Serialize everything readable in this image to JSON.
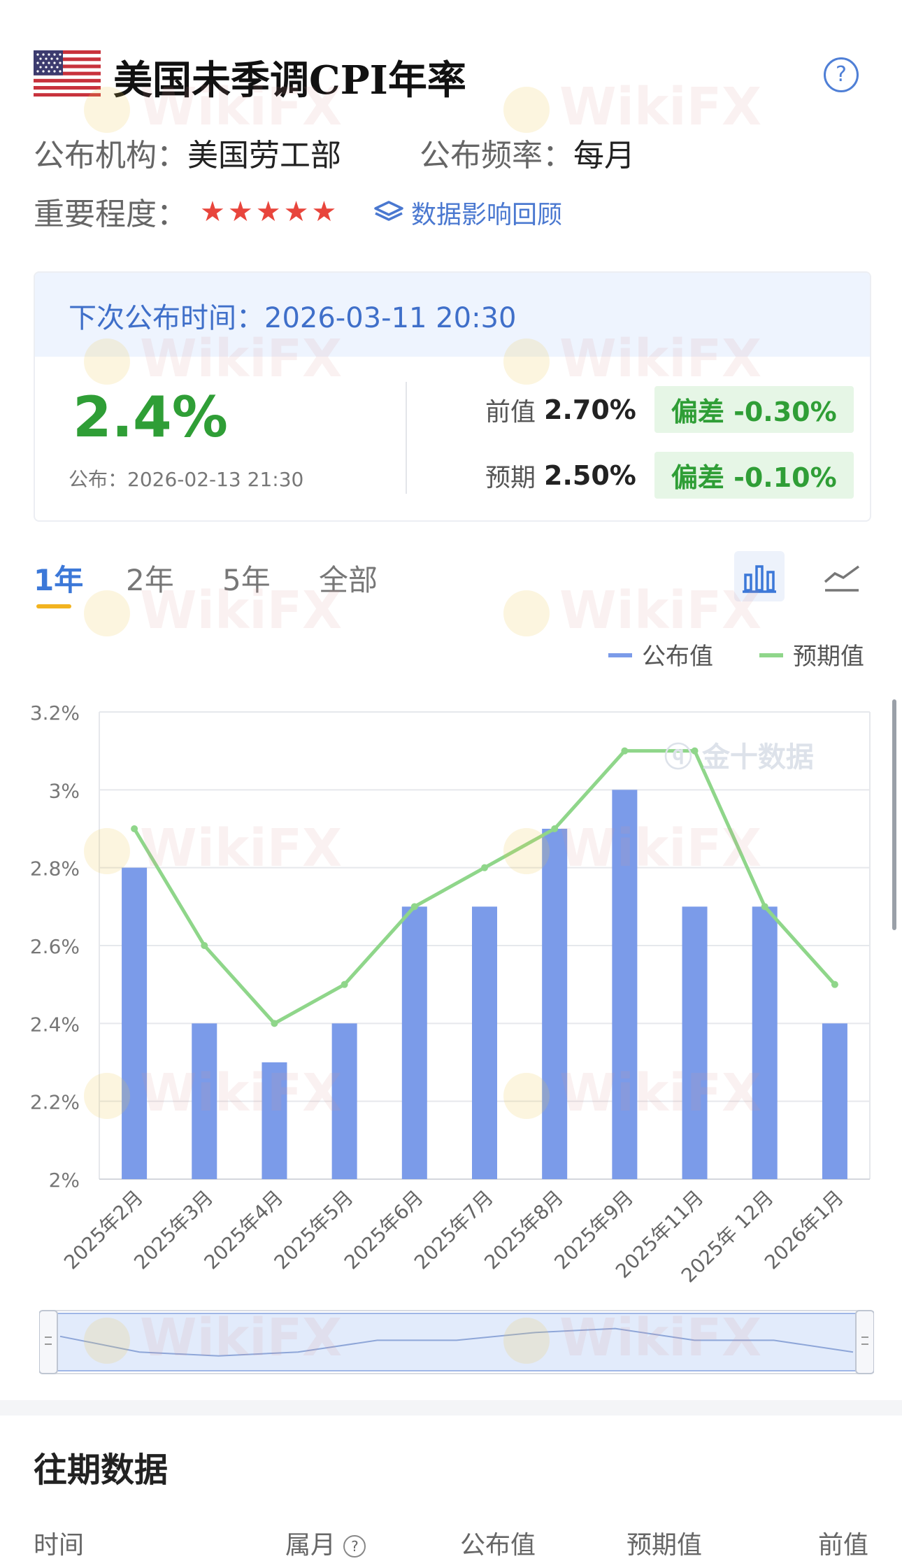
{
  "header": {
    "title": "美国未季调CPI年率",
    "agency_label": "公布机构：",
    "agency": "美国劳工部",
    "frequency_label": "公布频率：",
    "frequency": "每月",
    "importance_label": "重要程度：",
    "importance_stars": 5,
    "impact_link": "数据影响回顾"
  },
  "release": {
    "next_label": "下次公布时间：",
    "next_time": "2026-03-11 20:30",
    "actual": "2.4%",
    "published_label": "公布：",
    "published_time": "2026-02-13 21:30",
    "previous_label": "前值",
    "previous": "2.70%",
    "previous_dev": "偏差 -0.30%",
    "forecast_label": "预期",
    "forecast": "2.50%",
    "forecast_dev": "偏差 -0.10%"
  },
  "tabs": [
    {
      "label": "1年",
      "active": true
    },
    {
      "label": "2年",
      "active": false
    },
    {
      "label": "5年",
      "active": false
    },
    {
      "label": "全部",
      "active": false
    }
  ],
  "chart_watermark": "金十数据",
  "watermark_text": "WikiFX",
  "colors": {
    "bar": "#7b9be9",
    "line": "#8fd68a",
    "accent": "#3c78d8",
    "positive": "#2f9e36",
    "star": "#e8453c"
  },
  "chart_data": {
    "type": "bar",
    "categories": [
      "2025年2月",
      "2025年3月",
      "2025年4月",
      "2025年5月",
      "2025年6月",
      "2025年7月",
      "2025年8月",
      "2025年9月",
      "2025年11月",
      "2025年 12月",
      "2026年1月"
    ],
    "series": [
      {
        "name": "公布值",
        "type": "bar",
        "values": [
          2.8,
          2.4,
          2.3,
          2.4,
          2.7,
          2.7,
          2.9,
          3.0,
          2.7,
          2.7,
          2.4
        ]
      },
      {
        "name": "预期值",
        "type": "line",
        "values": [
          2.9,
          2.6,
          2.4,
          2.5,
          2.7,
          2.8,
          2.9,
          3.1,
          3.1,
          2.7,
          2.5
        ]
      }
    ],
    "yticks": [
      "2%",
      "2.2%",
      "2.4%",
      "2.6%",
      "2.8%",
      "3%",
      "3.2%"
    ],
    "ylim": [
      2,
      3.2
    ],
    "grid": true,
    "legend": "top-right"
  },
  "history": {
    "title": "往期数据",
    "columns": [
      "时间",
      "属月",
      "公布值",
      "预期值",
      "前值"
    ]
  }
}
